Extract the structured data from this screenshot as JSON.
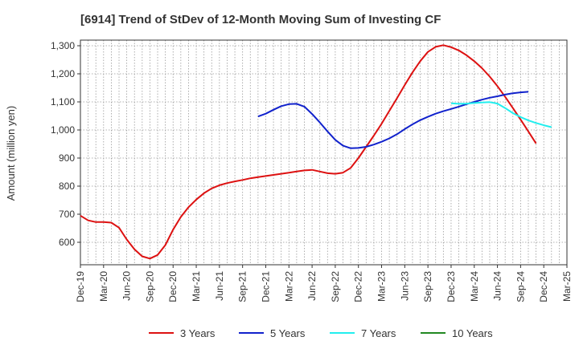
{
  "chart_data": {
    "type": "line",
    "title": "[6914]  Trend of StDev of 12-Month Moving Sum of Investing CF",
    "xlabel": "",
    "ylabel": "Amount (million yen)",
    "ylim": [
      520,
      1320
    ],
    "yticks": [
      600,
      700,
      800,
      900,
      1000,
      1100,
      1200,
      1300
    ],
    "ytick_labels": [
      "600",
      "700",
      "800",
      "900",
      "1,000",
      "1,100",
      "1,200",
      "1,300"
    ],
    "x_months": [
      "Dec-19",
      "Jan-20",
      "Feb-20",
      "Mar-20",
      "Apr-20",
      "May-20",
      "Jun-20",
      "Jul-20",
      "Aug-20",
      "Sep-20",
      "Oct-20",
      "Nov-20",
      "Dec-20",
      "Jan-21",
      "Feb-21",
      "Mar-21",
      "Apr-21",
      "May-21",
      "Jun-21",
      "Jul-21",
      "Aug-21",
      "Sep-21",
      "Oct-21",
      "Nov-21",
      "Dec-21",
      "Jan-22",
      "Feb-22",
      "Mar-22",
      "Apr-22",
      "May-22",
      "Jun-22",
      "Jul-22",
      "Aug-22",
      "Sep-22",
      "Oct-22",
      "Nov-22",
      "Dec-22",
      "Jan-23",
      "Feb-23",
      "Mar-23",
      "Apr-23",
      "May-23",
      "Jun-23",
      "Jul-23",
      "Aug-23",
      "Sep-23",
      "Oct-23",
      "Nov-23",
      "Dec-23",
      "Jan-24",
      "Feb-24",
      "Mar-24",
      "Apr-24",
      "May-24",
      "Jun-24",
      "Jul-24",
      "Aug-24",
      "Sep-24",
      "Oct-24",
      "Nov-24",
      "Dec-24",
      "Jan-25",
      "Feb-25",
      "Mar-25"
    ],
    "xtick_labels": [
      "Dec-19",
      "Mar-20",
      "Jun-20",
      "Sep-20",
      "Dec-20",
      "Mar-21",
      "Jun-21",
      "Sep-21",
      "Dec-21",
      "Mar-22",
      "Jun-22",
      "Sep-22",
      "Dec-22",
      "Mar-23",
      "Jun-23",
      "Sep-23",
      "Dec-23",
      "Mar-24",
      "Jun-24",
      "Sep-24",
      "Dec-24",
      "Mar-25"
    ],
    "grid": true,
    "legend_position": "bottom",
    "series": [
      {
        "name": "3 Years",
        "color": "#dd1111",
        "start": "Dec-19",
        "values": [
          695,
          678,
          672,
          672,
          670,
          652,
          610,
          575,
          550,
          542,
          555,
          590,
          645,
          690,
          725,
          752,
          775,
          792,
          803,
          811,
          817,
          822,
          828,
          832,
          836,
          840,
          844,
          848,
          852,
          856,
          858,
          852,
          846,
          844,
          848,
          865,
          900,
          940,
          980,
          1022,
          1068,
          1113,
          1160,
          1205,
          1245,
          1278,
          1296,
          1302,
          1295,
          1283,
          1266,
          1245,
          1220,
          1190,
          1156,
          1118,
          1078,
          1037,
          995,
          952
        ]
      },
      {
        "name": "5 Years",
        "color": "#1122cc",
        "start": "Nov-21",
        "values": [
          1048,
          1058,
          1072,
          1085,
          1092,
          1093,
          1083,
          1057,
          1027,
          995,
          965,
          944,
          935,
          936,
          940,
          948,
          958,
          970,
          985,
          1003,
          1020,
          1035,
          1047,
          1058,
          1067,
          1075,
          1083,
          1092,
          1100,
          1108,
          1115,
          1120,
          1126,
          1131,
          1134,
          1136
        ]
      },
      {
        "name": "7 Years",
        "color": "#22eeee",
        "start": "Dec-23",
        "values": [
          1095,
          1093,
          1094,
          1096,
          1098,
          1099,
          1094,
          1078,
          1060,
          1046,
          1034,
          1025,
          1017,
          1010
        ]
      },
      {
        "name": "10 Years",
        "color": "#228822",
        "start": "",
        "values": []
      }
    ]
  }
}
